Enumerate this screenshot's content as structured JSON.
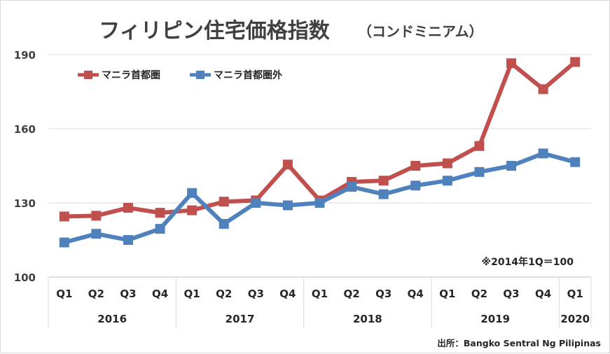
{
  "chart_data": {
    "type": "line",
    "title": "フィリピン住宅価格指数",
    "subtitle": "（コンドミニアム）",
    "categories": [
      "Q1",
      "Q2",
      "Q3",
      "Q4",
      "Q1",
      "Q2",
      "Q3",
      "Q4",
      "Q1",
      "Q2",
      "Q3",
      "Q4",
      "Q1",
      "Q2",
      "Q3",
      "Q4",
      "Q1"
    ],
    "years": [
      {
        "label": "2016",
        "count": 4
      },
      {
        "label": "2017",
        "count": 4
      },
      {
        "label": "2018",
        "count": 4
      },
      {
        "label": "2019",
        "count": 4
      },
      {
        "label": "2020",
        "count": 1
      }
    ],
    "series": [
      {
        "name": "マニラ首都圏",
        "color": "#c0504d",
        "values": [
          124.5,
          124.8,
          128.0,
          126.0,
          127.0,
          130.5,
          131.0,
          145.5,
          131.0,
          138.5,
          139.0,
          145.0,
          146.0,
          153.0,
          186.5,
          176.0,
          187.0
        ]
      },
      {
        "name": "マニラ首都圏外",
        "color": "#4f81bd",
        "values": [
          114.0,
          117.5,
          115.0,
          119.5,
          134.0,
          121.5,
          130.0,
          129.0,
          130.0,
          136.5,
          133.5,
          137.0,
          139.0,
          142.5,
          145.0,
          150.0,
          146.5
        ]
      }
    ],
    "ylim": [
      100,
      190
    ],
    "yticks": [
      100,
      130,
      160,
      190
    ],
    "grid": true,
    "legend_position": "top-left",
    "note": "※2014年1Q＝100",
    "source": "出所：Bangko Sentral Ng Pilipinas"
  }
}
